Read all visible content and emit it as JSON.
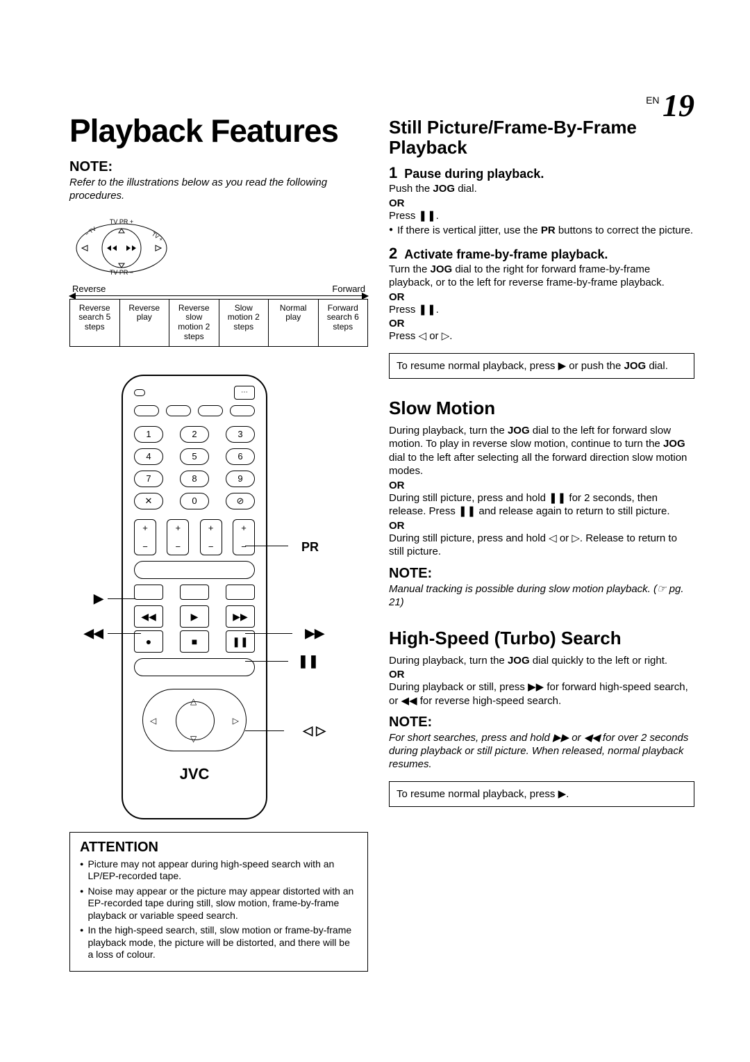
{
  "page": {
    "lang": "EN",
    "number": "19"
  },
  "title": "Playback Features",
  "left": {
    "note_hd": "NOTE:",
    "note_body": "Refer to the illustrations below as you read the following procedures.",
    "reverse": "Reverse",
    "forward": "Forward",
    "jog_cells": [
      "Reverse search 5 steps",
      "Reverse play",
      "Reverse slow motion 2 steps",
      "Slow motion 2 steps",
      "Normal play",
      "Forward search 6 steps"
    ],
    "jog_top": {
      "up": "TV PR +",
      "down": "TV PR −",
      "left_arc": "TV",
      "right_arc": "TV"
    },
    "remote": {
      "brand": "JVC",
      "numbers": [
        "1",
        "2",
        "3",
        "4",
        "5",
        "6",
        "7",
        "8",
        "9",
        "✕",
        "0",
        "⊘"
      ],
      "pm": "+  −",
      "transport": {
        "rew": "◀◀",
        "play": "▶",
        "ff": "▶▶",
        "rec": "●",
        "stop": "■",
        "pause": "❚❚"
      },
      "callouts": {
        "pr": "PR",
        "play": "▶",
        "rew": "◀◀",
        "ff": "▶▶",
        "pause": "❚❚",
        "lr": "◁ ▷"
      }
    },
    "attention": {
      "hd": "ATTENTION",
      "items": [
        "Picture may not appear during high-speed search with an LP/EP-recorded tape.",
        "Noise may appear or the picture may appear distorted with an EP-recorded tape during still, slow motion, frame-by-frame playback or variable speed search.",
        "In the high-speed search, still, slow motion or frame-by-frame playback mode, the picture will be distorted, and there will be a loss of colour."
      ]
    }
  },
  "right": {
    "still": {
      "title": "Still Picture/Frame-By-Frame Playback",
      "step1_t": "Pause during playback.",
      "step1_body": "Push the <b>JOG</b> dial.",
      "step1_alt": "Press ❚❚.",
      "step1_bullet": "If there is vertical jitter, use the <b>PR</b> buttons to correct the picture.",
      "step2_t": "Activate frame-by-frame playback.",
      "step2_body": "Turn the <b>JOG</b> dial to the right for forward frame-by-frame playback, or to the left for reverse frame-by-frame playback.",
      "step2_alt1": "Press ❚❚.",
      "step2_alt2": "Press ◁ or ▷.",
      "resume": "To resume normal playback, press ▶ or push the <b>JOG</b> dial."
    },
    "slow": {
      "title": "Slow Motion",
      "p1": "During playback, turn the <b>JOG</b> dial to the left for forward slow motion. To play in reverse slow motion, continue to turn the <b>JOG</b> dial to the left after selecting all the forward direction slow motion modes.",
      "p2": "During still picture, press and hold ❚❚ for 2 seconds, then release. Press ❚❚ and release again to return to still picture.",
      "p3": "During still picture, press and hold ◁ or ▷. Release to return to still picture.",
      "note_hd": "NOTE:",
      "note": "Manual tracking is possible during slow motion playback. (☞ pg. 21)"
    },
    "turbo": {
      "title": "High-Speed (Turbo) Search",
      "p1": "During playback, turn the <b>JOG</b> dial quickly to the left or right.",
      "p2": "During playback or still, press ▶▶ for forward high-speed search, or ◀◀ for reverse high-speed search.",
      "note_hd": "NOTE:",
      "note": "For short searches, press and hold ▶▶ or ◀◀ for over 2 seconds during playback or still picture. When released, normal playback resumes.",
      "resume": "To resume normal playback, press ▶."
    },
    "or": "OR",
    "step_nums": {
      "one": "1",
      "two": "2"
    }
  }
}
